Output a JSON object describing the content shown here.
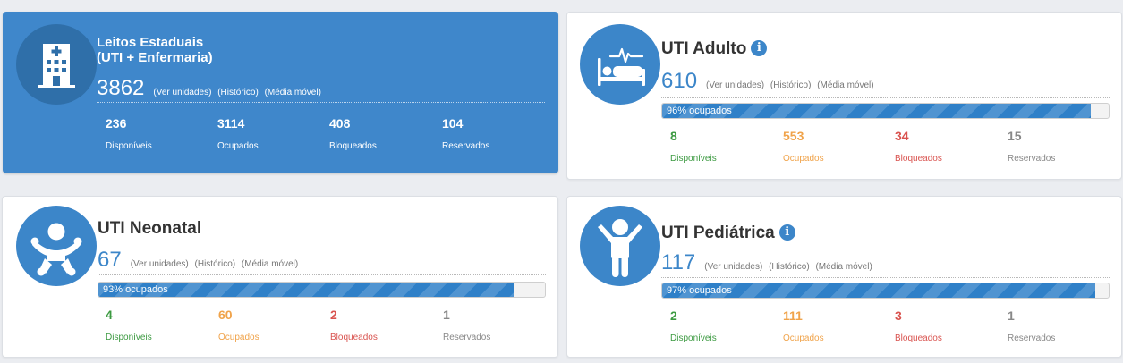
{
  "colors": {
    "primary_blue": "#3f87cb",
    "icon_blue": "#3c86c9",
    "progress_blue": "#2f80c8",
    "green": "#3c9a41",
    "orange": "#f0a34a",
    "red": "#d9534f",
    "gray": "#888888"
  },
  "links": {
    "units": "(Ver unidades)",
    "history": "(Histórico)",
    "moving_avg": "(Média móvel)"
  },
  "cards": {
    "estaduais": {
      "icon": "hospital-building-icon",
      "title_line1": "Leitos Estaduais",
      "title_line2": "(UTI + Enfermaria)",
      "total": "3862",
      "stats": {
        "disponiveis": {
          "value": "236",
          "label": "Disponíveis"
        },
        "ocupados": {
          "value": "3114",
          "label": "Ocupados"
        },
        "bloqueados": {
          "value": "408",
          "label": "Bloqueados"
        },
        "reservados": {
          "value": "104",
          "label": "Reservados"
        }
      }
    },
    "adulto": {
      "icon": "hospital-bed-icon",
      "title": "UTI Adulto",
      "info_icon": "info-icon",
      "total": "610",
      "occupancy_percent": 96,
      "occupancy_label": "96% ocupados",
      "stats": {
        "disponiveis": {
          "value": "8",
          "label": "Disponíveis"
        },
        "ocupados": {
          "value": "553",
          "label": "Ocupados"
        },
        "bloqueados": {
          "value": "34",
          "label": "Bloqueados"
        },
        "reservados": {
          "value": "15",
          "label": "Reservados"
        }
      }
    },
    "neonatal": {
      "icon": "baby-icon",
      "title": "UTI Neonatal",
      "total": "67",
      "occupancy_percent": 93,
      "occupancy_label": "93% ocupados",
      "stats": {
        "disponiveis": {
          "value": "4",
          "label": "Disponíveis"
        },
        "ocupados": {
          "value": "60",
          "label": "Ocupados"
        },
        "bloqueados": {
          "value": "2",
          "label": "Bloqueados"
        },
        "reservados": {
          "value": "1",
          "label": "Reservados"
        }
      }
    },
    "pediatrica": {
      "icon": "child-icon",
      "title": "UTI Pediátrica",
      "info_icon": "info-icon",
      "total": "117",
      "occupancy_percent": 97,
      "occupancy_label": "97% ocupados",
      "stats": {
        "disponiveis": {
          "value": "2",
          "label": "Disponíveis"
        },
        "ocupados": {
          "value": "111",
          "label": "Ocupados"
        },
        "bloqueados": {
          "value": "3",
          "label": "Bloqueados"
        },
        "reservados": {
          "value": "1",
          "label": "Reservados"
        }
      }
    }
  }
}
